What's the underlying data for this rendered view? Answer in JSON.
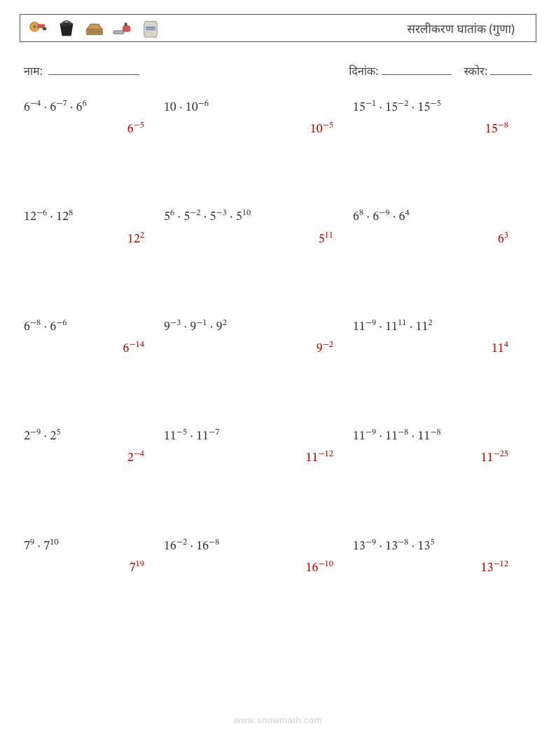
{
  "header": {
    "title": "सरलीकरण घातांक (गुणा)",
    "icons": [
      "grinder",
      "bucket",
      "wood",
      "chainsaw",
      "cement"
    ]
  },
  "info": {
    "name_label": "नाम:",
    "date_label": "दिनांक:",
    "score_label": "स्कोर:"
  },
  "answer_color": "#c00000",
  "text_color": "#333333",
  "problems": [
    {
      "terms": [
        {
          "b": "6",
          "e": "−4"
        },
        {
          "b": "6",
          "e": "−7"
        },
        {
          "b": "6",
          "e": "6"
        }
      ],
      "ans": {
        "b": "6",
        "e": "−5"
      }
    },
    {
      "terms": [
        {
          "b": "10",
          "e": ""
        },
        {
          "b": "10",
          "e": "−6"
        }
      ],
      "ans": {
        "b": "10",
        "e": "−5"
      }
    },
    {
      "terms": [
        {
          "b": "15",
          "e": "−1"
        },
        {
          "b": "15",
          "e": "−2"
        },
        {
          "b": "15",
          "e": "−5"
        }
      ],
      "ans": {
        "b": "15",
        "e": "−8"
      }
    },
    {
      "terms": [
        {
          "b": "12",
          "e": "−6"
        },
        {
          "b": "12",
          "e": "8"
        }
      ],
      "ans": {
        "b": "12",
        "e": "2"
      }
    },
    {
      "terms": [
        {
          "b": "5",
          "e": "6"
        },
        {
          "b": "5",
          "e": "−2"
        },
        {
          "b": "5",
          "e": "−3"
        },
        {
          "b": "5",
          "e": "10"
        }
      ],
      "ans": {
        "b": "5",
        "e": "11"
      }
    },
    {
      "terms": [
        {
          "b": "6",
          "e": "8"
        },
        {
          "b": "6",
          "e": "−9"
        },
        {
          "b": "6",
          "e": "4"
        }
      ],
      "ans": {
        "b": "6",
        "e": "3"
      }
    },
    {
      "terms": [
        {
          "b": "6",
          "e": "−8"
        },
        {
          "b": "6",
          "e": "−6"
        }
      ],
      "ans": {
        "b": "6",
        "e": "−14"
      }
    },
    {
      "terms": [
        {
          "b": "9",
          "e": "−3"
        },
        {
          "b": "9",
          "e": "−1"
        },
        {
          "b": "9",
          "e": "2"
        }
      ],
      "ans": {
        "b": "9",
        "e": "−2"
      }
    },
    {
      "terms": [
        {
          "b": "11",
          "e": "−9"
        },
        {
          "b": "11",
          "e": "11"
        },
        {
          "b": "11",
          "e": "2"
        }
      ],
      "ans": {
        "b": "11",
        "e": "4"
      }
    },
    {
      "terms": [
        {
          "b": "2",
          "e": "−9"
        },
        {
          "b": "2",
          "e": "5"
        }
      ],
      "ans": {
        "b": "2",
        "e": "−4"
      }
    },
    {
      "terms": [
        {
          "b": "11",
          "e": "−5"
        },
        {
          "b": "11",
          "e": "−7"
        }
      ],
      "ans": {
        "b": "11",
        "e": "−12"
      }
    },
    {
      "terms": [
        {
          "b": "11",
          "e": "−9"
        },
        {
          "b": "11",
          "e": "−8"
        },
        {
          "b": "11",
          "e": "−8"
        }
      ],
      "ans": {
        "b": "11",
        "e": "−25"
      }
    },
    {
      "terms": [
        {
          "b": "7",
          "e": "9"
        },
        {
          "b": "7",
          "e": "10"
        }
      ],
      "ans": {
        "b": "7",
        "e": "19"
      }
    },
    {
      "terms": [
        {
          "b": "16",
          "e": "−2"
        },
        {
          "b": "16",
          "e": "−8"
        }
      ],
      "ans": {
        "b": "16",
        "e": "−10"
      }
    },
    {
      "terms": [
        {
          "b": "13",
          "e": "−9"
        },
        {
          "b": "13",
          "e": "−8"
        },
        {
          "b": "13",
          "e": "5"
        }
      ],
      "ans": {
        "b": "13",
        "e": "−12"
      }
    }
  ],
  "footer": "www.snowmath.com"
}
